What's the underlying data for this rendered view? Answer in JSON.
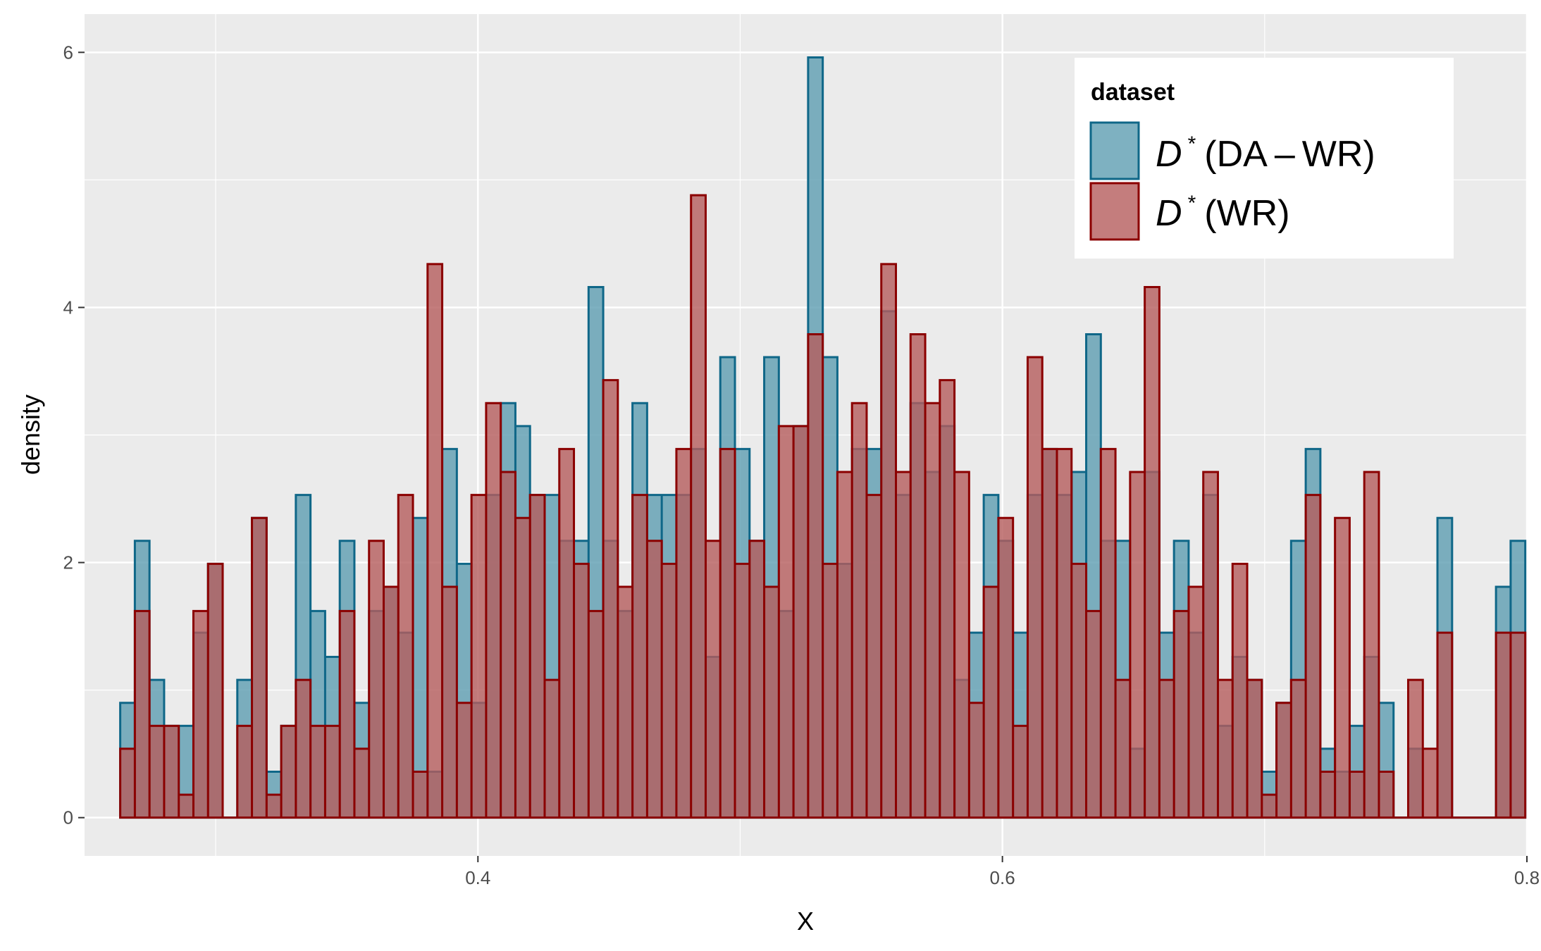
{
  "chart_data": {
    "type": "bar",
    "xlabel": "X",
    "ylabel": "density",
    "xlim": [
      0.25,
      0.8
    ],
    "ylim": [
      -0.3,
      6.3
    ],
    "xticks": [
      0.4,
      0.6,
      0.8
    ],
    "xtick_labels": [
      "0.4",
      "0.6",
      "0.8"
    ],
    "yticks": [
      0,
      2,
      4,
      6
    ],
    "ytick_labels": [
      "0",
      "2",
      "4",
      "6"
    ],
    "x_minor_gridlines": [
      0.3,
      0.5,
      0.7
    ],
    "y_minor_gridlines": [
      1,
      3,
      5
    ],
    "grid": true,
    "bin_start": 0.2636,
    "bin_width": 0.005581,
    "legend": {
      "title": "dataset",
      "position": "top-right"
    },
    "series": [
      {
        "name": "D*(DA-WR)",
        "name_parts": [
          "D",
          "*",
          "(DA",
          "–",
          "WR)"
        ],
        "fill": "#5e9db2",
        "stroke": "#0f6788",
        "values": [
          0.9,
          2.17,
          1.08,
          0.72,
          0.72,
          1.45,
          1.99,
          0,
          1.08,
          2.35,
          0.36,
          0.72,
          2.53,
          1.62,
          1.26,
          2.17,
          0.9,
          1.62,
          1.81,
          1.45,
          2.35,
          0.36,
          2.89,
          1.99,
          0.9,
          2.53,
          3.25,
          3.07,
          2.53,
          2.53,
          2.17,
          2.17,
          4.16,
          2.17,
          1.62,
          3.25,
          2.53,
          2.53,
          2.53,
          2.89,
          1.26,
          3.61,
          2.89,
          2.17,
          3.61,
          1.62,
          3.07,
          5.96,
          3.61,
          1.99,
          2.89,
          2.89,
          3.97,
          2.53,
          3.25,
          2.71,
          3.07,
          1.08,
          1.45,
          2.53,
          2.17,
          1.45,
          2.53,
          2.89,
          2.53,
          2.71,
          3.79,
          2.17,
          2.17,
          0.54,
          2.71,
          1.45,
          2.17,
          1.45,
          2.53,
          0.72,
          1.26,
          1.08,
          0.36,
          0.9,
          2.17,
          2.89,
          0.54,
          0.36,
          0.72,
          1.26,
          0.9,
          0,
          0.54,
          0,
          2.35,
          0,
          0,
          0,
          1.81,
          2.17
        ]
      },
      {
        "name": "D*(WR)",
        "name_parts": [
          "D",
          "*",
          "(WR)"
        ],
        "fill": "#b55d5d",
        "stroke": "#8b0000",
        "values": [
          0.54,
          1.62,
          0.72,
          0.72,
          0.18,
          1.62,
          1.99,
          0,
          0.72,
          2.35,
          0.18,
          0.72,
          1.08,
          0.72,
          0.72,
          1.62,
          0.54,
          2.17,
          1.81,
          2.53,
          0.36,
          4.34,
          1.81,
          0.9,
          2.53,
          3.25,
          2.71,
          2.35,
          2.53,
          1.08,
          2.89,
          1.99,
          1.62,
          3.43,
          1.81,
          2.53,
          2.17,
          1.99,
          2.89,
          4.88,
          2.17,
          2.89,
          1.99,
          2.17,
          1.81,
          3.07,
          3.07,
          3.79,
          1.99,
          2.71,
          3.25,
          2.53,
          4.34,
          2.71,
          3.79,
          3.25,
          3.43,
          2.71,
          0.9,
          1.81,
          2.35,
          0.72,
          3.61,
          2.89,
          2.89,
          1.99,
          1.62,
          2.89,
          1.08,
          2.71,
          4.16,
          1.08,
          1.62,
          1.81,
          2.71,
          1.08,
          1.99,
          1.08,
          0.18,
          0.9,
          1.08,
          2.53,
          0.36,
          2.35,
          0.36,
          2.71,
          0.36,
          0,
          1.08,
          0.54,
          1.45,
          0,
          0,
          0,
          1.45,
          1.45
        ]
      }
    ]
  }
}
